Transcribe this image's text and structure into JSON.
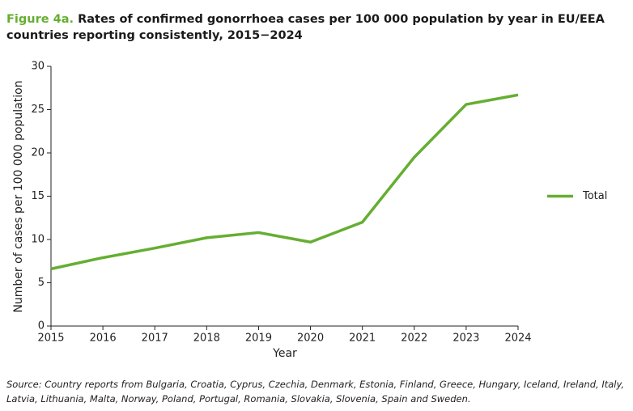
{
  "chart_data": {
    "type": "line",
    "figure_label": "Figure 4a.",
    "title": "Rates of confirmed gonorrhoea cases per 100 000 population by year in EU/EEA countries reporting consistently, 2015−2024",
    "xlabel": "Year",
    "ylabel": "Number of cases per 100 000 population",
    "x": [
      2015,
      2016,
      2017,
      2018,
      2019,
      2020,
      2021,
      2022,
      2023,
      2024
    ],
    "series": [
      {
        "name": "Total",
        "color": "#65ae32",
        "values": [
          6.6,
          7.9,
          9.0,
          10.2,
          10.8,
          9.7,
          12.0,
          19.5,
          25.6,
          26.7
        ]
      }
    ],
    "xlim": [
      2015,
      2024
    ],
    "xticks": [
      2015,
      2016,
      2017,
      2018,
      2019,
      2020,
      2021,
      2022,
      2023,
      2024
    ],
    "ylim": [
      0,
      30
    ],
    "yticks": [
      0,
      5,
      10,
      15,
      20,
      25,
      30
    ],
    "legend": "right",
    "source": "Source: Country reports from Bulgaria, Croatia, Cyprus, Czechia, Denmark, Estonia, Finland, Greece, Hungary, Iceland, Ireland, Italy, Latvia, Lithuania, Malta, Norway, Poland, Portugal, Romania, Slovakia, Slovenia, Spain and Sweden."
  }
}
